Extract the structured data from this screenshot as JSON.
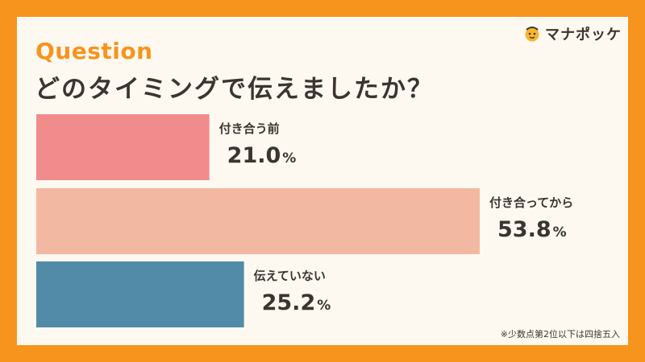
{
  "question_label": "Question",
  "title": "どのタイミングで伝えましたか？",
  "brand": {
    "name": "マナポッケ"
  },
  "note": "※少数点第2位以下は四捨五入",
  "chart_data": {
    "type": "bar",
    "orientation": "horizontal",
    "categories": [
      "付き合う前",
      "付き合ってから",
      "伝えていない"
    ],
    "values": [
      21.0,
      53.8,
      25.2
    ],
    "value_unit": "%",
    "xlim": [
      0,
      100
    ],
    "colors": [
      "#f28b8b",
      "#f3b8a1",
      "#528ba7"
    ],
    "grid": false,
    "legend": "none"
  }
}
